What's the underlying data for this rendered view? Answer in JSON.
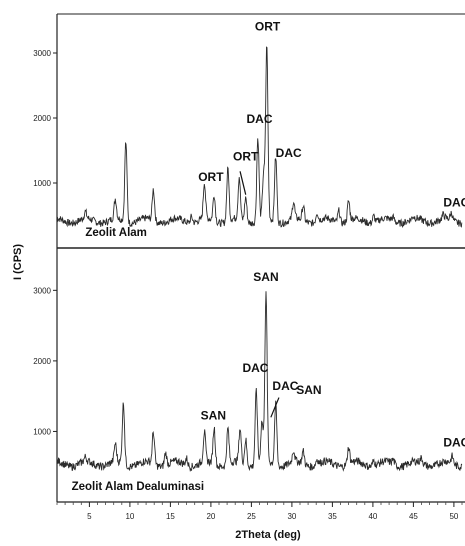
{
  "chart_data": {
    "type": "line",
    "xlabel": "2Theta (deg)",
    "ylabel": "I (CPS)",
    "xlim": [
      1,
      51
    ],
    "x_ticks": [
      5,
      10,
      15,
      20,
      25,
      30,
      35,
      40,
      45,
      50
    ],
    "y_ticks": [
      1000,
      2000,
      3000
    ],
    "grid": false,
    "panels": [
      {
        "name": "Zeolit Alam",
        "ylim": [
          0,
          3600
        ],
        "baseline": 420,
        "peaks": [
          {
            "x": 4.5,
            "y": 520
          },
          {
            "x": 8.2,
            "y": 720
          },
          {
            "x": 9.5,
            "y": 1650
          },
          {
            "x": 12.9,
            "y": 900
          },
          {
            "x": 17.6,
            "y": 520
          },
          {
            "x": 19.2,
            "y": 980
          },
          {
            "x": 20.4,
            "y": 830
          },
          {
            "x": 22.1,
            "y": 1230
          },
          {
            "x": 23.5,
            "y": 1070
          },
          {
            "x": 24.3,
            "y": 800
          },
          {
            "x": 25.8,
            "y": 1700
          },
          {
            "x": 26.5,
            "y": 1100
          },
          {
            "x": 26.9,
            "y": 3100
          },
          {
            "x": 28.0,
            "y": 1420
          },
          {
            "x": 30.2,
            "y": 680
          },
          {
            "x": 31.4,
            "y": 650
          },
          {
            "x": 33.1,
            "y": 560
          },
          {
            "x": 35.8,
            "y": 610
          },
          {
            "x": 37.0,
            "y": 720
          },
          {
            "x": 40.1,
            "y": 520
          },
          {
            "x": 42.5,
            "y": 470
          },
          {
            "x": 45.0,
            "y": 450
          },
          {
            "x": 48.7,
            "y": 480
          },
          {
            "x": 49.7,
            "y": 530
          }
        ],
        "annotations": [
          {
            "text": "ORT",
            "x": 27.0,
            "y": 3350
          },
          {
            "text": "DAC",
            "x": 26.0,
            "y": 1920
          },
          {
            "text": "ORT",
            "x": 24.3,
            "y": 1350
          },
          {
            "text": "DAC",
            "x": 29.6,
            "y": 1400
          },
          {
            "text": "ORT",
            "x": 20.0,
            "y": 1030
          },
          {
            "text": "DAC",
            "x": 50.3,
            "y": 640
          }
        ]
      },
      {
        "name": "Zeolit Alam Dealuminasi",
        "ylim": [
          0,
          3600
        ],
        "baseline": 540,
        "peaks": [
          {
            "x": 4.5,
            "y": 600
          },
          {
            "x": 8.2,
            "y": 790
          },
          {
            "x": 9.2,
            "y": 1400
          },
          {
            "x": 12.9,
            "y": 990
          },
          {
            "x": 14.4,
            "y": 720
          },
          {
            "x": 17.0,
            "y": 640
          },
          {
            "x": 19.2,
            "y": 960
          },
          {
            "x": 20.4,
            "y": 1060
          },
          {
            "x": 22.1,
            "y": 1050
          },
          {
            "x": 23.6,
            "y": 1020
          },
          {
            "x": 24.3,
            "y": 900
          },
          {
            "x": 25.6,
            "y": 1600
          },
          {
            "x": 26.3,
            "y": 1120
          },
          {
            "x": 26.8,
            "y": 2900
          },
          {
            "x": 28.0,
            "y": 1400
          },
          {
            "x": 30.2,
            "y": 700
          },
          {
            "x": 31.4,
            "y": 720
          },
          {
            "x": 33.1,
            "y": 620
          },
          {
            "x": 37.0,
            "y": 770
          },
          {
            "x": 40.1,
            "y": 620
          },
          {
            "x": 42.5,
            "y": 600
          },
          {
            "x": 46.0,
            "y": 610
          },
          {
            "x": 49.8,
            "y": 640
          }
        ],
        "annotations": [
          {
            "text": "SAN",
            "x": 26.8,
            "y": 3130
          },
          {
            "text": "DAC",
            "x": 25.5,
            "y": 1840
          },
          {
            "text": "DAC",
            "x": 29.2,
            "y": 1590
          },
          {
            "text": "SAN",
            "x": 32.1,
            "y": 1530
          },
          {
            "text": "SAN",
            "x": 20.3,
            "y": 1170
          },
          {
            "text": "DAC",
            "x": 50.3,
            "y": 790
          }
        ]
      }
    ]
  }
}
